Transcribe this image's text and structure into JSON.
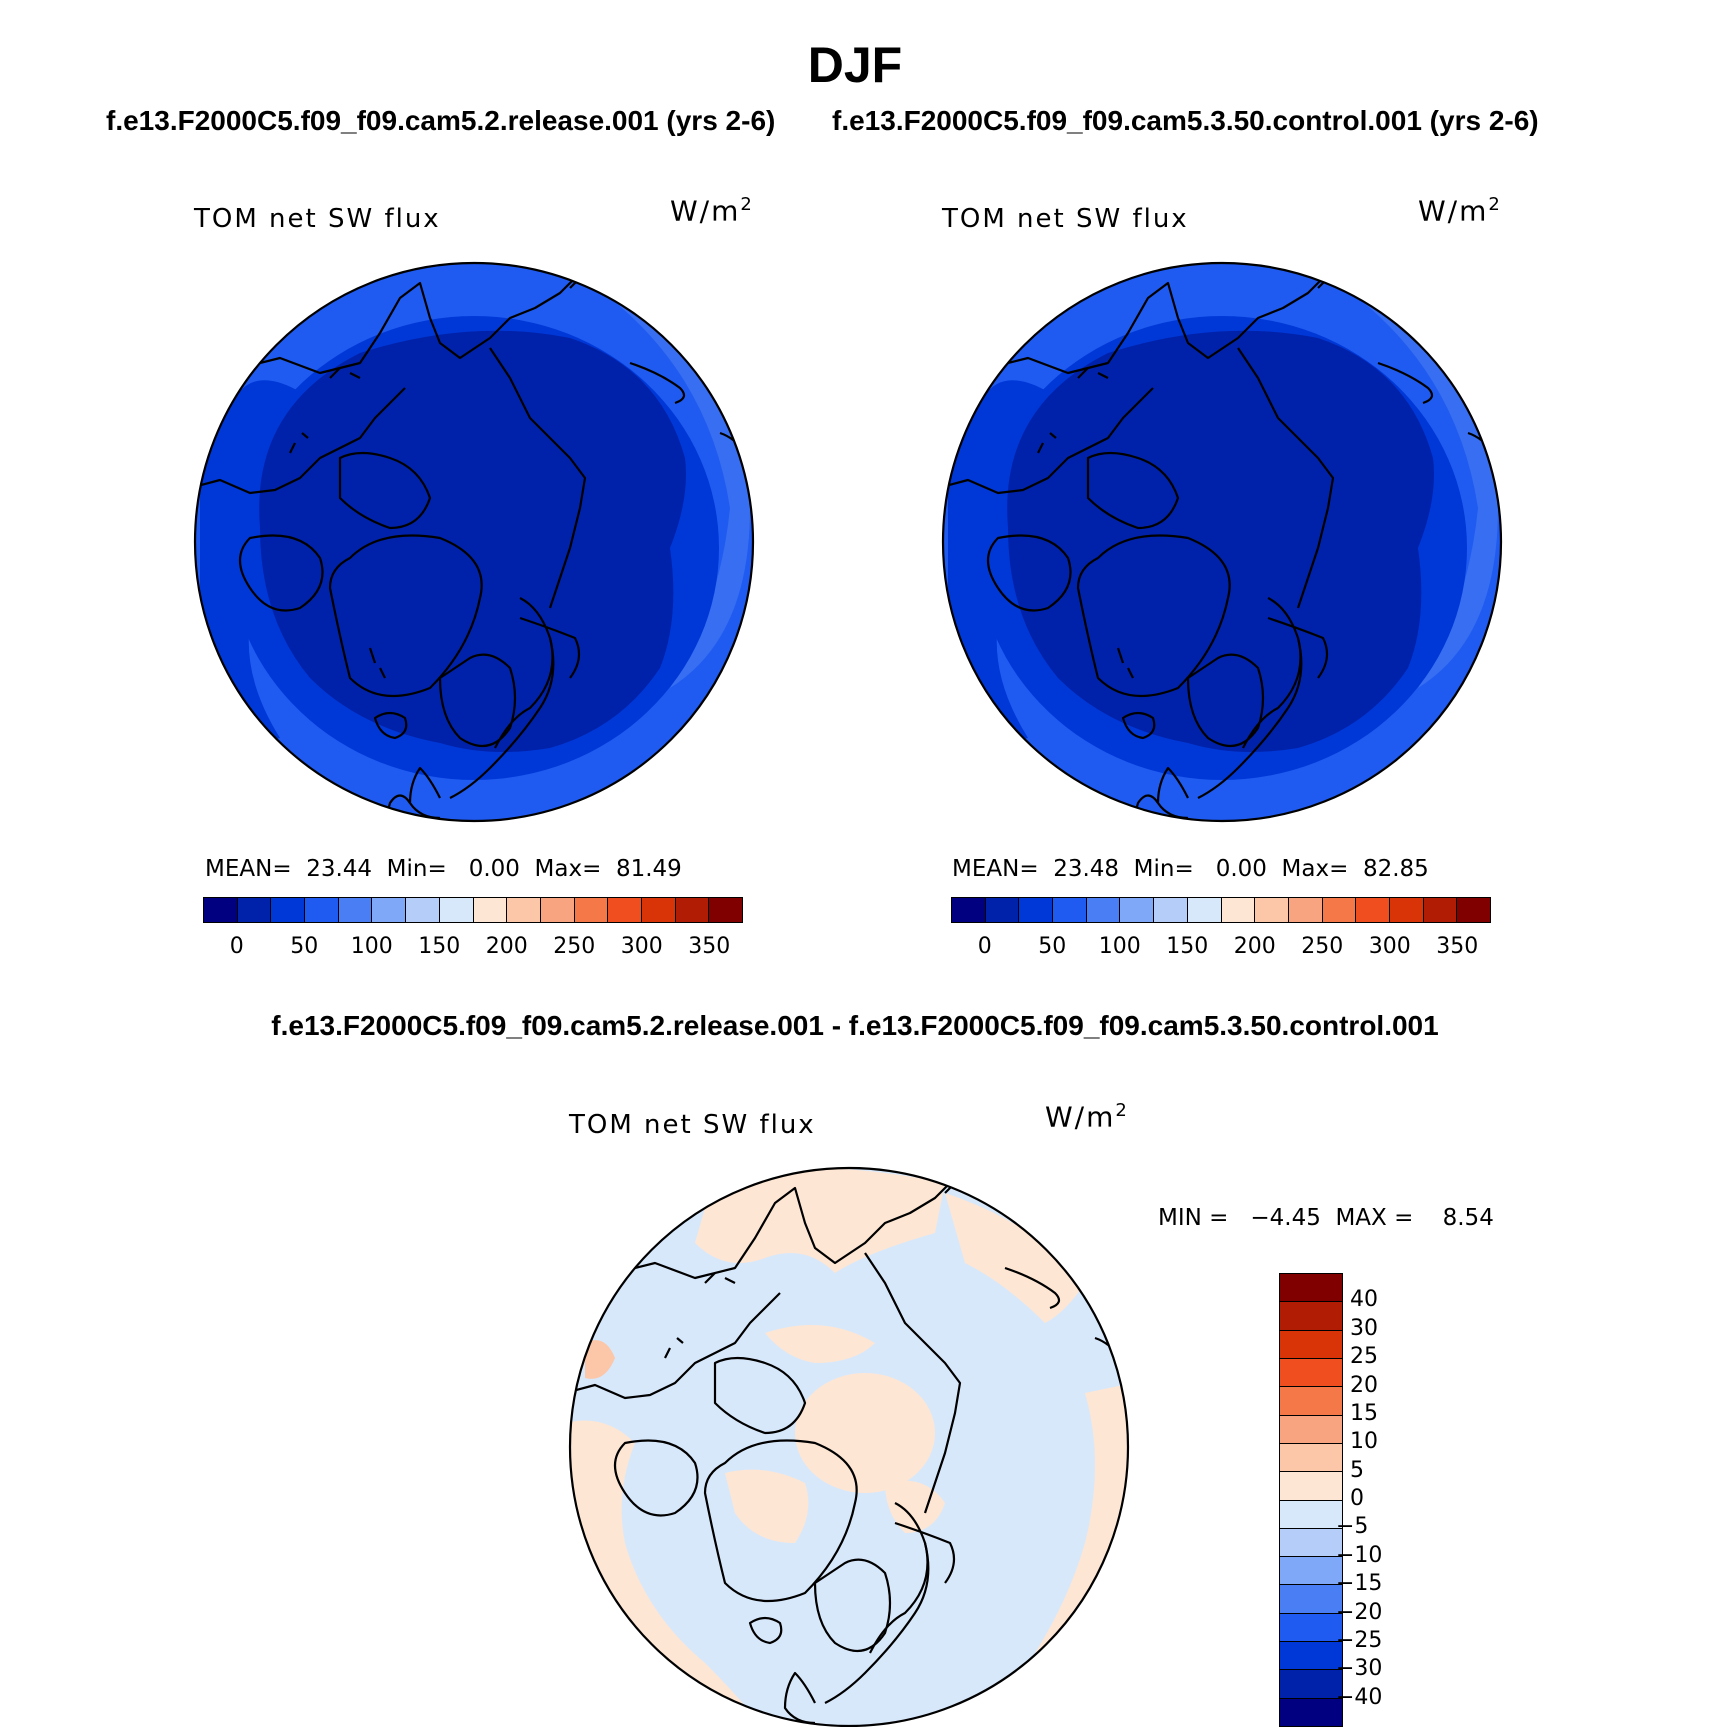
{
  "page": {
    "title": "DJF",
    "case1_title": "f.e13.F2000C5.f09_f09.cam5.2.release.001 (yrs 2-6)",
    "case2_title": "f.e13.F2000C5.f09_f09.cam5.3.50.control.001 (yrs 2-6)",
    "diff_title": "f.e13.F2000C5.f09_f09.cam5.2.release.001 - f.e13.F2000C5.f09_f09.cam5.3.50.control.001"
  },
  "panels": [
    {
      "label": "TOM net SW flux",
      "units_base": "W/m",
      "units_exp": "2",
      "stats": "MEAN=  23.44  Min=   0.00  Max=  81.49",
      "colorbar": {
        "colors": [
          "#000080",
          "#0022aa",
          "#0038d8",
          "#1f5bf0",
          "#4a7ef4",
          "#80a8f8",
          "#b4cef9",
          "#d8e8fb",
          "#fde6d4",
          "#fcc6a8",
          "#f8a480",
          "#f47848",
          "#f04e1e",
          "#d83408",
          "#b01c04",
          "#800000"
        ],
        "labels": [
          "0",
          "50",
          "100",
          "150",
          "200",
          "250",
          "300",
          "350"
        ]
      }
    },
    {
      "label": "TOM net SW flux",
      "units_base": "W/m",
      "units_exp": "2",
      "stats": "MEAN=  23.48  Min=   0.00  Max=  82.85",
      "colorbar": {
        "colors": [
          "#000080",
          "#0022aa",
          "#0038d8",
          "#1f5bf0",
          "#4a7ef4",
          "#80a8f8",
          "#b4cef9",
          "#d8e8fb",
          "#fde6d4",
          "#fcc6a8",
          "#f8a480",
          "#f47848",
          "#f04e1e",
          "#d83408",
          "#b01c04",
          "#800000"
        ],
        "labels": [
          "0",
          "50",
          "100",
          "150",
          "200",
          "250",
          "300",
          "350"
        ]
      }
    },
    {
      "label": "TOM net SW flux",
      "units_base": "W/m",
      "units_exp": "2",
      "stats": "MIN =   −4.45  MAX =    8.54",
      "colorbar": {
        "colors": [
          "#800000",
          "#b01c04",
          "#d83408",
          "#f04e1e",
          "#f47848",
          "#f8a480",
          "#fcc6a8",
          "#fde6d4",
          "#d8e8fb",
          "#b4cef9",
          "#80a8f8",
          "#4a7ef4",
          "#1f5bf0",
          "#0038d8",
          "#0022aa",
          "#000080"
        ],
        "labels": [
          "40",
          "30",
          "25",
          "20",
          "15",
          "10",
          "5",
          "0",
          "−5",
          "−10",
          "−15",
          "−20",
          "−25",
          "−30",
          "−40"
        ]
      }
    }
  ]
}
